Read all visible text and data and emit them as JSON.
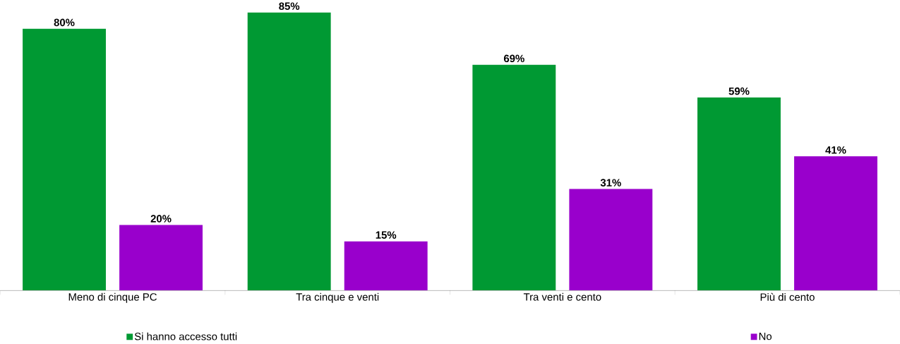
{
  "chart_data": {
    "type": "bar",
    "categories": [
      "Meno di cinque PC",
      "Tra cinque e venti",
      "Tra venti e cento",
      "Più di cento"
    ],
    "series": [
      {
        "name": "Si hanno accesso tutti",
        "color": "#009933",
        "values": [
          80,
          85,
          69,
          59
        ],
        "value_labels": [
          "80%",
          "85%",
          "69%",
          "59%"
        ]
      },
      {
        "name": "No",
        "color": "#9900cc",
        "values": [
          20,
          15,
          31,
          41
        ],
        "value_labels": [
          "20%",
          "15%",
          "31%",
          "41%"
        ]
      }
    ],
    "legend": "bottom"
  }
}
